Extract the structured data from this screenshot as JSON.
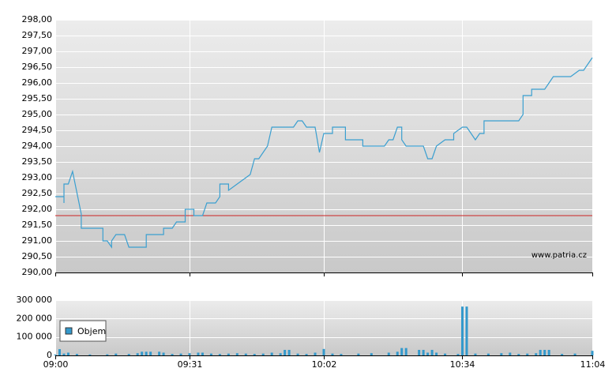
{
  "chart_data": [
    {
      "type": "line",
      "color": "#3a9fd0",
      "reference_line": 291.8,
      "reference_color": "#cc2222",
      "grid": true,
      "watermark": "www.patria.cz",
      "xlim": [
        "09:00",
        "11:04"
      ],
      "ylim": [
        290,
        298
      ],
      "yticks": [
        {
          "value": 290,
          "label": "290,00"
        },
        {
          "value": 290.5,
          "label": "290,50"
        },
        {
          "value": 291,
          "label": "291,00"
        },
        {
          "value": 291.5,
          "label": "291,50"
        },
        {
          "value": 292,
          "label": "292,00"
        },
        {
          "value": 292.5,
          "label": "292,50"
        },
        {
          "value": 293,
          "label": "293,00"
        },
        {
          "value": 293.5,
          "label": "293,50"
        },
        {
          "value": 294,
          "label": "294,00"
        },
        {
          "value": 294.5,
          "label": "294,50"
        },
        {
          "value": 295,
          "label": "295,00"
        },
        {
          "value": 295.5,
          "label": "295,50"
        },
        {
          "value": 296,
          "label": "296,00"
        },
        {
          "value": 296.5,
          "label": "296,50"
        },
        {
          "value": 297,
          "label": "297,00"
        },
        {
          "value": 297.5,
          "label": "297,50"
        },
        {
          "value": 298,
          "label": "298,00"
        }
      ],
      "x": [
        "09:00",
        "09:02",
        "09:02",
        "09:02",
        "09:03",
        "09:04",
        "09:04",
        "09:06",
        "09:06",
        "09:11",
        "09:11",
        "09:12",
        "09:13",
        "09:13",
        "09:14",
        "09:16",
        "09:17",
        "09:21",
        "09:21",
        "09:25",
        "09:25",
        "09:27",
        "09:28",
        "09:30",
        "09:30",
        "09:32",
        "09:32",
        "09:34",
        "09:35",
        "09:37",
        "09:38",
        "09:38",
        "09:40",
        "09:40",
        "09:42",
        "09:44",
        "09:45",
        "09:46",
        "09:47",
        "09:49",
        "09:50",
        "09:55",
        "09:56",
        "09:57",
        "09:58",
        "10:00",
        "10:01",
        "10:02",
        "10:04",
        "10:04",
        "10:07",
        "10:07",
        "10:11",
        "10:11",
        "10:16",
        "10:17",
        "10:18",
        "10:19",
        "10:20",
        "10:20",
        "10:21",
        "10:25",
        "10:26",
        "10:27",
        "10:28",
        "10:30",
        "10:32",
        "10:32",
        "10:34",
        "10:35",
        "10:36",
        "10:37",
        "10:38",
        "10:39",
        "10:39",
        "10:47",
        "10:48",
        "10:48",
        "10:50",
        "10:50",
        "10:53",
        "10:54",
        "10:55",
        "10:59",
        "11:01",
        "11:02",
        "11:03",
        "11:04"
      ],
      "values": [
        292.4,
        292.4,
        292.2,
        292.8,
        292.8,
        293.2,
        293.2,
        291.85,
        291.4,
        291.4,
        291.0,
        291.0,
        290.8,
        291.0,
        291.2,
        291.2,
        290.8,
        290.8,
        291.2,
        291.2,
        291.4,
        291.4,
        291.6,
        291.6,
        292.0,
        292.0,
        291.8,
        291.8,
        292.2,
        292.2,
        292.4,
        292.8,
        292.8,
        292.6,
        292.8,
        293.0,
        293.1,
        293.6,
        293.6,
        294.0,
        294.6,
        294.6,
        294.8,
        294.8,
        294.6,
        294.6,
        293.8,
        294.4,
        294.4,
        294.6,
        294.6,
        294.2,
        294.2,
        294.0,
        294.0,
        294.2,
        294.2,
        294.6,
        294.6,
        294.2,
        294.0,
        294.0,
        293.6,
        293.6,
        294.0,
        294.2,
        294.2,
        294.4,
        294.6,
        294.6,
        294.4,
        294.2,
        294.4,
        294.4,
        294.8,
        294.8,
        295.0,
        295.6,
        295.6,
        295.8,
        295.8,
        296.0,
        296.2,
        296.2,
        296.4,
        296.4,
        296.6,
        296.8
      ]
    },
    {
      "type": "bar",
      "grid": true,
      "xlim": [
        "09:00",
        "11:04"
      ],
      "ylim": [
        0,
        300000
      ],
      "yticks": [
        0,
        {
          "value": 100000,
          "label": "100 000"
        },
        {
          "value": 200000,
          "label": "200 000"
        },
        {
          "value": 300000,
          "label": "300 000"
        }
      ],
      "xticks": [
        "09:00",
        "09:31",
        "10:02",
        "10:34",
        "11:04"
      ],
      "x": [
        "09:00",
        "09:01",
        "09:02",
        "09:03",
        "09:05",
        "09:08",
        "09:12",
        "09:14",
        "09:17",
        "09:19",
        "09:20",
        "09:21",
        "09:22",
        "09:24",
        "09:25",
        "09:27",
        "09:29",
        "09:31",
        "09:33",
        "09:34",
        "09:36",
        "09:38",
        "09:40",
        "09:42",
        "09:44",
        "09:46",
        "09:48",
        "09:50",
        "09:52",
        "09:53",
        "09:54",
        "09:56",
        "09:58",
        "10:00",
        "10:02",
        "10:04",
        "10:06",
        "10:10",
        "10:13",
        "10:17",
        "10:19",
        "10:20",
        "10:21",
        "10:24",
        "10:25",
        "10:26",
        "10:27",
        "10:28",
        "10:30",
        "10:33",
        "10:34",
        "10:35",
        "10:37",
        "10:40",
        "10:43",
        "10:45",
        "10:47",
        "10:49",
        "10:51",
        "10:52",
        "10:53",
        "10:54",
        "10:57",
        "11:00",
        "11:04"
      ],
      "series": [
        {
          "name": "Objem",
          "color": "#3399cc",
          "values": [
            5000,
            34000,
            10000,
            15000,
            8000,
            5000,
            6000,
            10000,
            8000,
            12000,
            20000,
            20000,
            20000,
            20000,
            15000,
            8000,
            10000,
            12000,
            15000,
            15000,
            10000,
            8000,
            10000,
            12000,
            10000,
            8000,
            10000,
            15000,
            12000,
            30000,
            30000,
            10000,
            8000,
            15000,
            35000,
            10000,
            8000,
            10000,
            12000,
            15000,
            20000,
            40000,
            40000,
            30000,
            30000,
            15000,
            30000,
            15000,
            10000,
            8000,
            265000,
            265000,
            10000,
            10000,
            12000,
            15000,
            8000,
            10000,
            12000,
            30000,
            30000,
            30000,
            8000,
            10000,
            25000
          ]
        }
      ]
    }
  ]
}
